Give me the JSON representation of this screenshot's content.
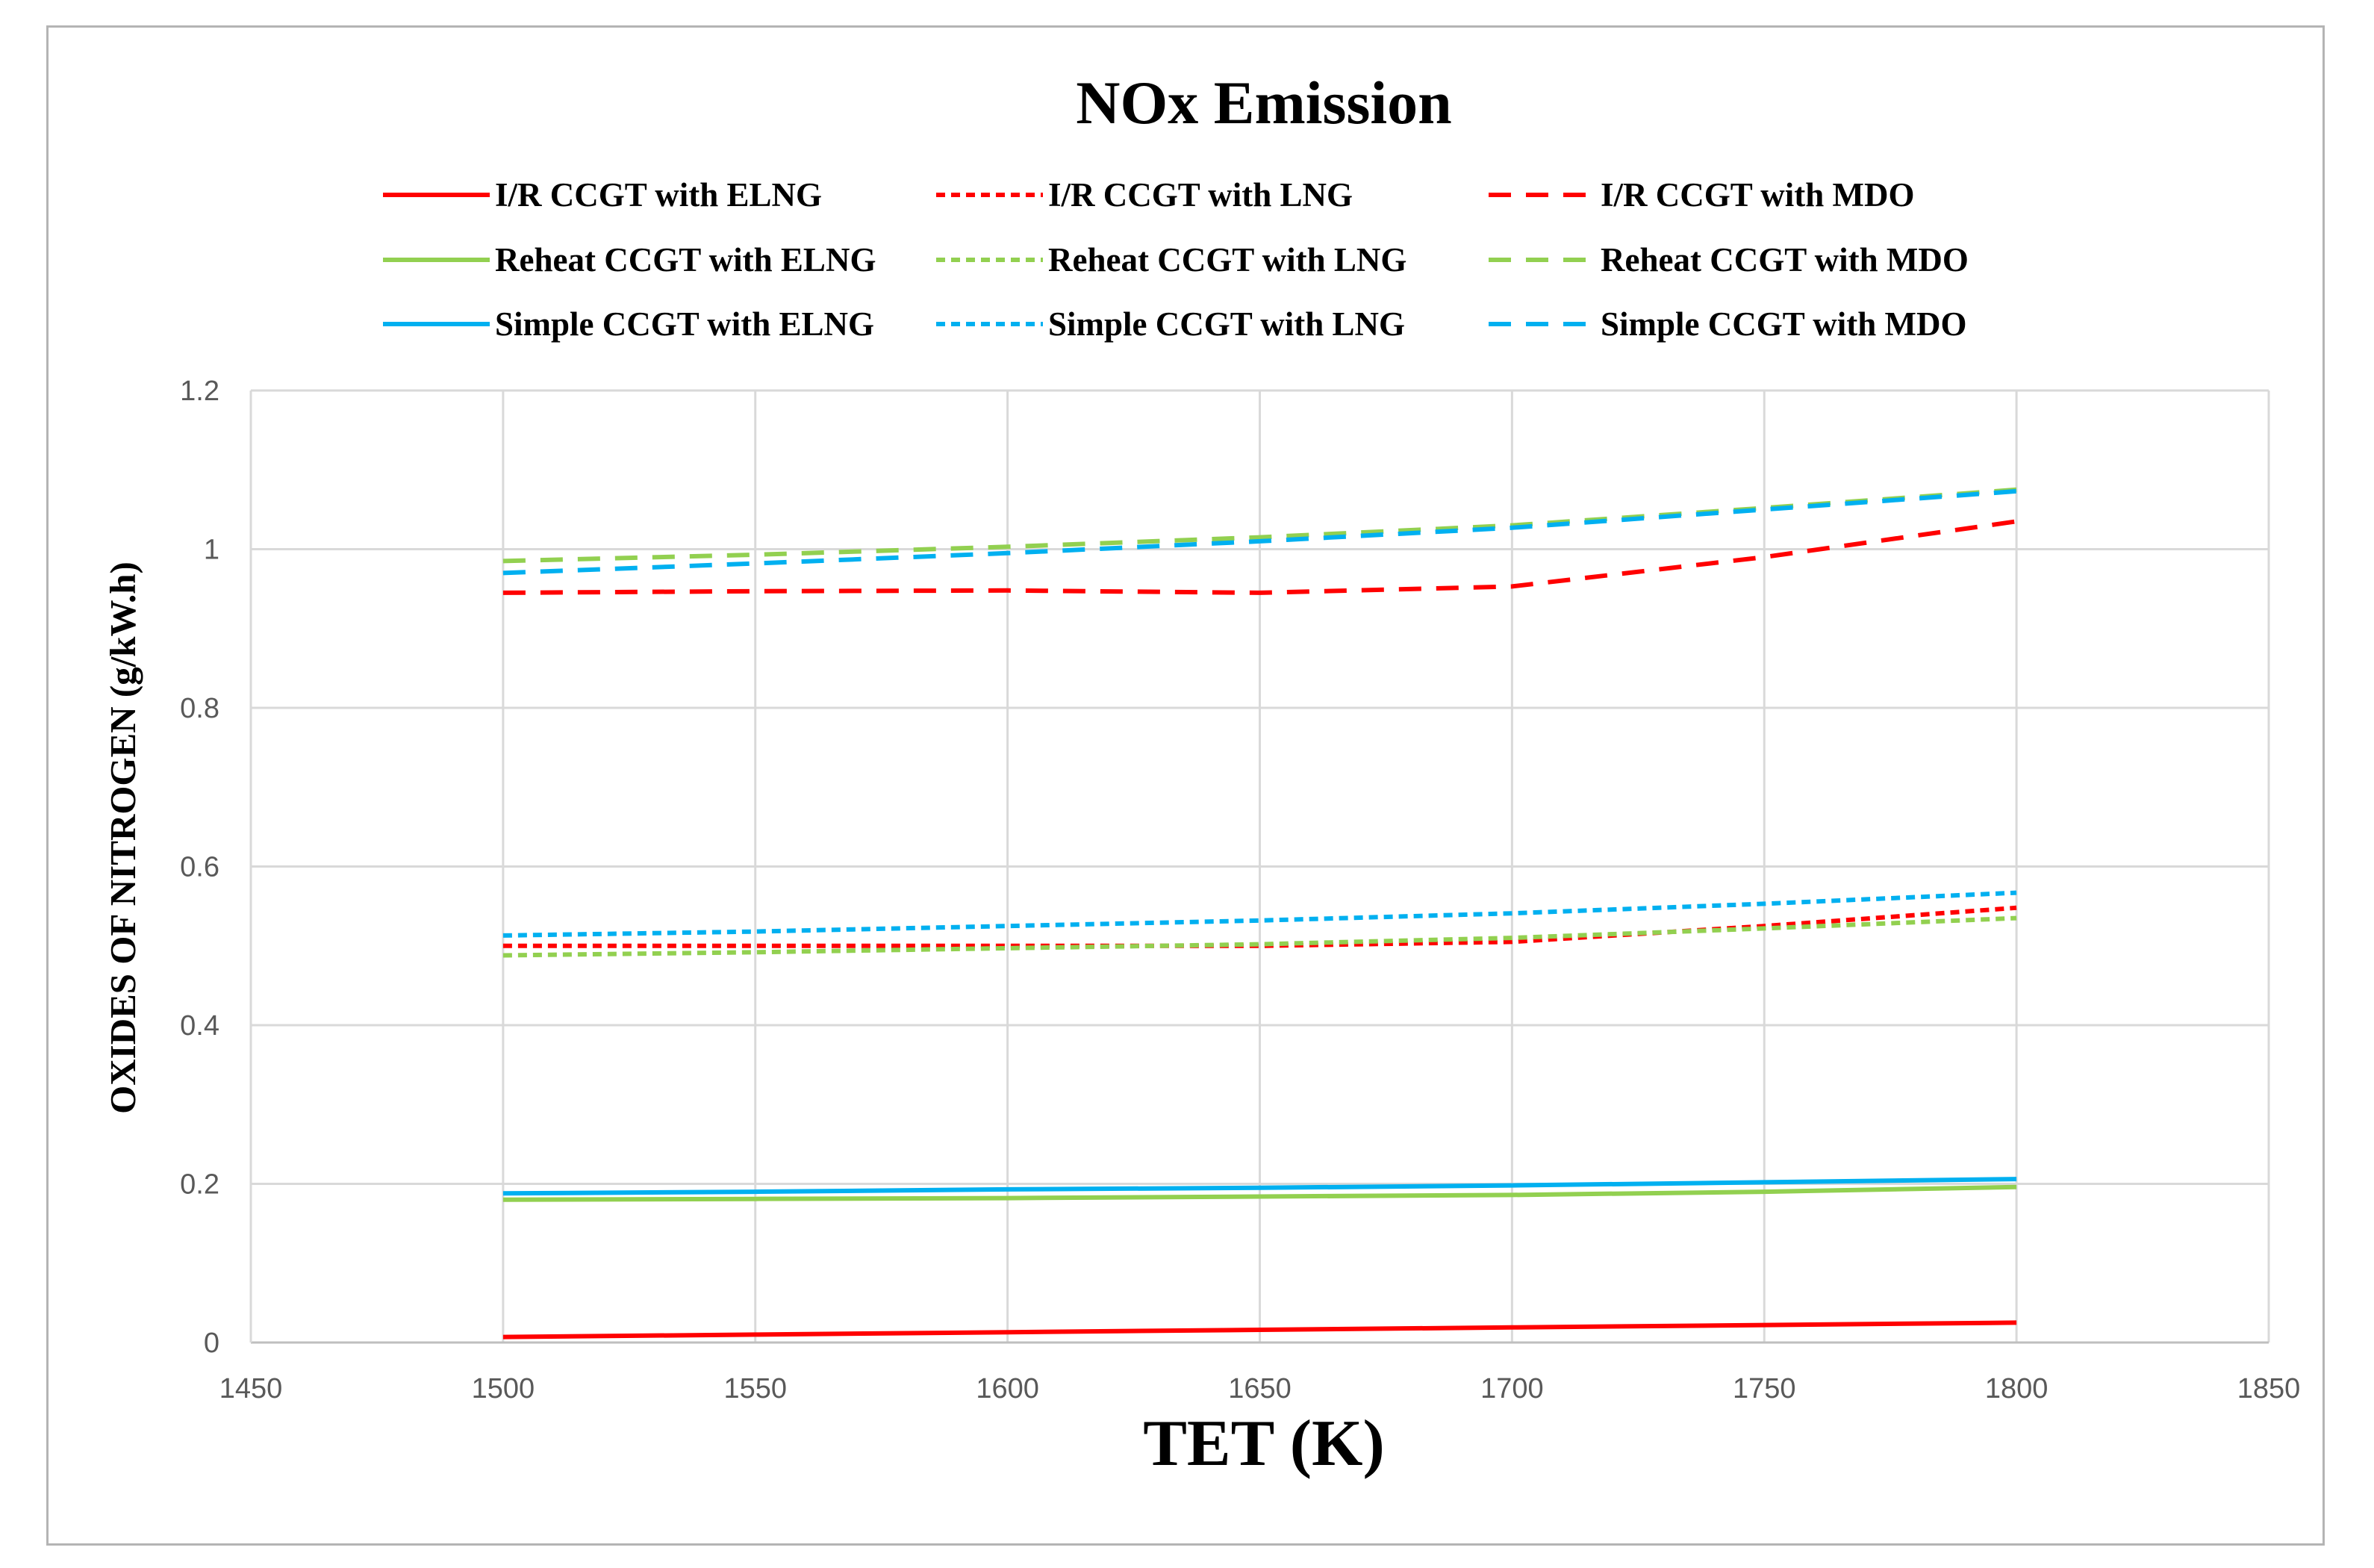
{
  "chart_data": {
    "type": "line",
    "title": "NOx Emission",
    "xlabel": "TET (K)",
    "ylabel": "OXIDES OF NITROGEN (g/kW.h)",
    "xlim": [
      1450,
      1850
    ],
    "ylim": [
      0,
      1.2
    ],
    "x_ticks": [
      "1450",
      "1500",
      "1550",
      "1600",
      "1650",
      "1700",
      "1750",
      "1800",
      "1850"
    ],
    "y_ticks": [
      "0",
      "0.2",
      "0.4",
      "0.6",
      "0.8",
      "1",
      "1.2"
    ],
    "grid": true,
    "legend_position": "top",
    "x": [
      1500,
      1550,
      1600,
      1650,
      1700,
      1750,
      1800
    ],
    "series": [
      {
        "name": "I/R CCGT with ELNG",
        "color": "#ff0000",
        "dash": "solid",
        "values": [
          0.007,
          0.01,
          0.013,
          0.016,
          0.019,
          0.022,
          0.025
        ]
      },
      {
        "name": "I/R CCGT with LNG",
        "color": "#ff0000",
        "dash": "short",
        "values": [
          0.5,
          0.5,
          0.5,
          0.5,
          0.505,
          0.525,
          0.548
        ]
      },
      {
        "name": "I/R CCGT with MDO",
        "color": "#ff0000",
        "dash": "long",
        "values": [
          0.945,
          0.947,
          0.948,
          0.945,
          0.953,
          0.99,
          1.035
        ]
      },
      {
        "name": "Reheat CCGT with ELNG",
        "color": "#92d050",
        "dash": "solid",
        "values": [
          0.18,
          0.181,
          0.182,
          0.184,
          0.186,
          0.19,
          0.196
        ]
      },
      {
        "name": "Reheat CCGT with LNG",
        "color": "#92d050",
        "dash": "short",
        "values": [
          0.488,
          0.492,
          0.497,
          0.502,
          0.51,
          0.522,
          0.535
        ]
      },
      {
        "name": "Reheat CCGT with MDO",
        "color": "#92d050",
        "dash": "long",
        "values": [
          0.985,
          0.993,
          1.003,
          1.015,
          1.03,
          1.052,
          1.075
        ]
      },
      {
        "name": "Simple CCGT with ELNG",
        "color": "#00b0f0",
        "dash": "solid",
        "values": [
          0.188,
          0.19,
          0.193,
          0.195,
          0.198,
          0.202,
          0.206
        ]
      },
      {
        "name": "Simple CCGT with LNG",
        "color": "#00b0f0",
        "dash": "short",
        "values": [
          0.513,
          0.518,
          0.525,
          0.532,
          0.541,
          0.553,
          0.567
        ]
      },
      {
        "name": "Simple CCGT with MDO",
        "color": "#00b0f0",
        "dash": "long",
        "values": [
          0.97,
          0.982,
          0.995,
          1.01,
          1.027,
          1.05,
          1.073
        ]
      }
    ]
  }
}
